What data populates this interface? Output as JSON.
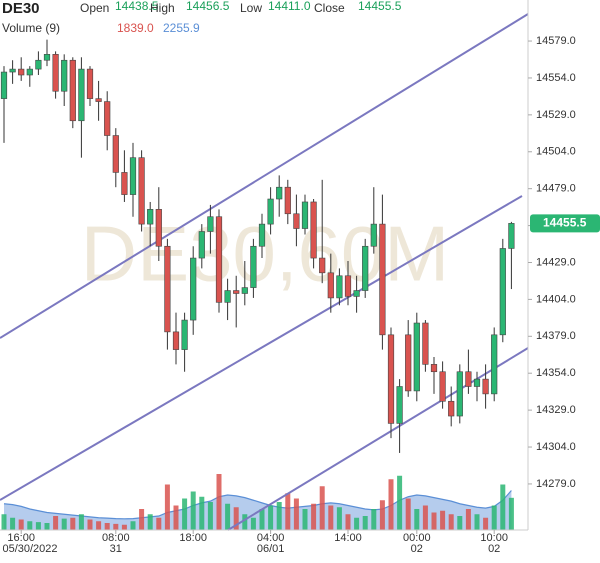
{
  "chart_data": {
    "type": "candlestick",
    "title": "DE30",
    "watermark": "DE30,60M",
    "ohlc_labels": [
      "Open",
      "High",
      "Low",
      "Close"
    ],
    "ohlc_value_labels": [
      "14438.5",
      "14456.5",
      "14411.0",
      "14455.5"
    ],
    "volume_title": "Volume (9)",
    "volume_label": "1839.0",
    "open": [
      14540,
      14558,
      14560,
      14556,
      14560,
      14566,
      14570,
      14545,
      14566,
      14525,
      14560,
      14540,
      14538,
      14515,
      14490,
      14475,
      14500,
      14455,
      14465,
      14440,
      14382,
      14370,
      14390,
      14432,
      14450,
      14460,
      14402,
      14410,
      14408,
      14412,
      14440,
      14455,
      14472,
      14480,
      14462,
      14452,
      14470,
      14432,
      14422,
      14405,
      14420,
      14406,
      14410,
      14440,
      14455,
      14380,
      14320,
      14380,
      14342,
      14388,
      14360,
      14355,
      14335,
      14325,
      14355,
      14345,
      14350,
      14340,
      14380,
      14438.5
    ],
    "high": [
      14562,
      14566,
      14568,
      14562,
      14572,
      14580,
      14572,
      14570,
      14568,
      14568,
      14562,
      14552,
      14545,
      14520,
      14505,
      14510,
      14505,
      14470,
      14480,
      14445,
      14395,
      14395,
      14440,
      14455,
      14468,
      14465,
      14418,
      14420,
      14430,
      14445,
      14462,
      14480,
      14488,
      14485,
      14475,
      14475,
      14472,
      14485,
      14435,
      14425,
      14430,
      14420,
      14445,
      14480,
      14475,
      14385,
      14350,
      14390,
      14395,
      14390,
      14365,
      14362,
      14345,
      14360,
      14370,
      14355,
      14360,
      14385,
      14445,
      14456.5
    ],
    "low": [
      14510,
      14550,
      14552,
      14548,
      14556,
      14562,
      14540,
      14535,
      14520,
      14500,
      14535,
      14525,
      14505,
      14480,
      14470,
      14460,
      14450,
      14440,
      14430,
      14370,
      14360,
      14355,
      14380,
      14425,
      14435,
      14395,
      14390,
      14385,
      14400,
      14405,
      14432,
      14448,
      14460,
      14455,
      14440,
      14448,
      14425,
      14415,
      14395,
      14400,
      14400,
      14395,
      14405,
      14435,
      14370,
      14310,
      14300,
      14338,
      14335,
      14355,
      14340,
      14330,
      14318,
      14320,
      14340,
      14335,
      14330,
      14335,
      14375,
      14411
    ],
    "close": [
      14558,
      14560,
      14556,
      14560,
      14566,
      14570,
      14545,
      14566,
      14525,
      14560,
      14540,
      14538,
      14515,
      14490,
      14475,
      14500,
      14455,
      14465,
      14440,
      14382,
      14370,
      14390,
      14432,
      14450,
      14460,
      14402,
      14410,
      14408,
      14412,
      14440,
      14455,
      14472,
      14480,
      14462,
      14452,
      14470,
      14432,
      14422,
      14405,
      14420,
      14406,
      14410,
      14440,
      14455,
      14380,
      14320,
      14345,
      14342,
      14388,
      14360,
      14355,
      14335,
      14325,
      14355,
      14345,
      14350,
      14340,
      14380,
      14438.5,
      14455.5
    ],
    "volume": [
      900,
      700,
      600,
      500,
      450,
      400,
      800,
      650,
      700,
      900,
      600,
      500,
      400,
      350,
      300,
      500,
      1200,
      900,
      700,
      2600,
      1400,
      1800,
      2200,
      1900,
      1600,
      3200,
      1500,
      1300,
      900,
      700,
      1200,
      1400,
      1600,
      2100,
      1800,
      1200,
      1500,
      2500,
      1400,
      1300,
      900,
      700,
      800,
      1200,
      1700,
      2900,
      3100,
      1800,
      1200,
      1400,
      1000,
      1100,
      900,
      800,
      1200,
      900,
      700,
      1400,
      2600,
      1839
    ],
    "volume_ma": [
      1500,
      1450,
      1350,
      1200,
      1100,
      1000,
      950,
      900,
      850,
      800,
      750,
      700,
      680,
      650,
      640,
      650,
      700,
      750,
      800,
      1000,
      1100,
      1200,
      1400,
      1550,
      1650,
      1900,
      2000,
      1950,
      1850,
      1700,
      1550,
      1400,
      1300,
      1250,
      1300,
      1350,
      1400,
      1500,
      1550,
      1500,
      1400,
      1300,
      1200,
      1150,
      1200,
      1400,
      1700,
      1900,
      2000,
      1950,
      1850,
      1750,
      1650,
      1500,
      1400,
      1300,
      1250,
      1350,
      1700,
      2255.9
    ],
    "volume_lim": [
      0,
      4000
    ],
    "categories": [
      null,
      null,
      "16:00",
      null,
      null,
      null,
      null,
      null,
      null,
      null,
      null,
      null,
      null,
      "08:00",
      null,
      null,
      null,
      null,
      null,
      null,
      null,
      null,
      "18:00",
      null,
      null,
      null,
      null,
      null,
      null,
      null,
      null,
      "04:00",
      null,
      null,
      null,
      null,
      null,
      null,
      null,
      null,
      "14:00",
      null,
      null,
      null,
      null,
      null,
      null,
      null,
      "00:00",
      null,
      null,
      null,
      null,
      null,
      null,
      null,
      null,
      "10:00",
      null,
      null
    ],
    "dates": [
      null,
      null,
      "05/30/2022",
      null,
      null,
      null,
      null,
      null,
      null,
      null,
      null,
      null,
      null,
      "31",
      null,
      null,
      null,
      null,
      null,
      null,
      null,
      null,
      null,
      null,
      null,
      null,
      null,
      null,
      null,
      null,
      null,
      "06/01",
      null,
      null,
      null,
      null,
      null,
      null,
      null,
      null,
      null,
      null,
      null,
      null,
      null,
      null,
      null,
      null,
      "02",
      null,
      null,
      null,
      null,
      null,
      null,
      null,
      null,
      "02",
      null,
      null
    ],
    "ylim": [
      14247.8,
      14606.8
    ],
    "yticks": [
      {
        "value": 14279,
        "label": "14279.0"
      },
      {
        "value": 14304,
        "label": "14304.0"
      },
      {
        "value": 14329,
        "label": "14329.0"
      },
      {
        "value": 14354,
        "label": "14354.0"
      },
      {
        "value": 14379,
        "label": "14379.0"
      },
      {
        "value": 14404,
        "label": "14404.0"
      },
      {
        "value": 14429,
        "label": "14429.0"
      },
      {
        "value": 14454,
        "label": "14454.0"
      },
      {
        "value": 14479,
        "label": "14479.0"
      },
      {
        "value": 14504,
        "label": "14504.0"
      },
      {
        "value": 14529,
        "label": "14529.0"
      },
      {
        "value": 14554,
        "label": "14554.0"
      },
      {
        "value": 14579,
        "label": "14579.0"
      }
    ],
    "up_color": "#2bb673",
    "down_color": "#d9534f",
    "volume_ma_color": "#5b8fd6"
  }
}
